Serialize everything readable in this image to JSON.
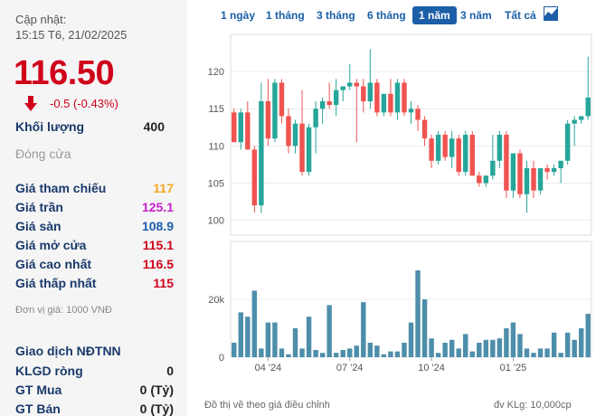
{
  "quote": {
    "updated_label": "Cập nhật:",
    "updated_time": "15:15 T6, 21/02/2025",
    "price": "116.50",
    "change": "-0.5 (-0.43%)",
    "volume_label": "Khối lượng",
    "volume": "400",
    "close_label": "Đóng cửa",
    "rows": [
      {
        "label": "Giá tham chiếu",
        "value": "117",
        "color": "#f5a623"
      },
      {
        "label": "Giá trần",
        "value": "125.1",
        "color": "#c71fc7"
      },
      {
        "label": "Giá sàn",
        "value": "108.9",
        "color": "#1d5ea8"
      },
      {
        "label": "Giá mở cửa",
        "value": "115.1",
        "color": "#d0021b"
      },
      {
        "label": "Giá cao nhất",
        "value": "116.5",
        "color": "#d0021b"
      },
      {
        "label": "Giá thấp nhất",
        "value": "115",
        "color": "#d0021b"
      }
    ],
    "unit_note": "Đơn vị giá: 1000 VNĐ",
    "foreign_title": "Giao dịch NĐTNN",
    "foreign_rows": [
      {
        "label": "KLGD ròng",
        "value": "0"
      },
      {
        "label": "GT Mua",
        "value": "0 (Tỷ)"
      },
      {
        "label": "GT Bán",
        "value": "0 (Tỷ)"
      }
    ]
  },
  "tabs": [
    "1 ngày",
    "1 tháng",
    "3 tháng",
    "6 tháng",
    "1 năm",
    "3 năm",
    "Tất cả"
  ],
  "active_tab": "1 năm",
  "chart_icon": "area-chart-icon",
  "colors": {
    "up": "#26a69a",
    "down": "#ef5350",
    "volume": "#4d8eaa",
    "price_down": "#d0021b"
  },
  "footnote_left": "Đồ thị vẽ theo giá điều chỉnh",
  "footnote_right": "đv KLg: 10,000cp",
  "chart_data": [
    {
      "type": "candlestick",
      "title": "",
      "x_ticks": [
        "04 '24",
        "07 '24",
        "10 '24",
        "01 '25"
      ],
      "x_tick_index": [
        5,
        17,
        29,
        41
      ],
      "y_ticks": [
        100,
        105,
        110,
        115,
        120
      ],
      "ylim": [
        98,
        125
      ],
      "grid": true,
      "candles": [
        {
          "o": 114.5,
          "h": 115,
          "l": 110.5,
          "c": 110.5
        },
        {
          "o": 110.5,
          "h": 115,
          "l": 109.5,
          "c": 114.5
        },
        {
          "o": 114.5,
          "h": 116,
          "l": 109.5,
          "c": 109.5
        },
        {
          "o": 109.5,
          "h": 110,
          "l": 101,
          "c": 102
        },
        {
          "o": 102,
          "h": 118.5,
          "l": 101,
          "c": 116
        },
        {
          "o": 116,
          "h": 119,
          "l": 110,
          "c": 111
        },
        {
          "o": 111,
          "h": 119,
          "l": 110.5,
          "c": 118.5
        },
        {
          "o": 118.5,
          "h": 119,
          "l": 113,
          "c": 114
        },
        {
          "o": 114,
          "h": 115,
          "l": 109,
          "c": 110
        },
        {
          "o": 110,
          "h": 113.5,
          "l": 109,
          "c": 113
        },
        {
          "o": 113,
          "h": 117.5,
          "l": 106,
          "c": 106.5
        },
        {
          "o": 106.5,
          "h": 113,
          "l": 106,
          "c": 112.5
        },
        {
          "o": 112.5,
          "h": 116,
          "l": 109,
          "c": 115
        },
        {
          "o": 115,
          "h": 116.5,
          "l": 113,
          "c": 116
        },
        {
          "o": 116,
          "h": 118.5,
          "l": 115,
          "c": 115.5
        },
        {
          "o": 115.5,
          "h": 119,
          "l": 114,
          "c": 117.5
        },
        {
          "o": 117.5,
          "h": 118,
          "l": 116,
          "c": 118
        },
        {
          "o": 118,
          "h": 121,
          "l": 117.5,
          "c": 118.5
        },
        {
          "o": 118.5,
          "h": 119,
          "l": 110.5,
          "c": 118
        },
        {
          "o": 118,
          "h": 119,
          "l": 114.5,
          "c": 116
        },
        {
          "o": 116,
          "h": 123,
          "l": 115,
          "c": 118.5
        },
        {
          "o": 118.5,
          "h": 119,
          "l": 114,
          "c": 114.5
        },
        {
          "o": 114.5,
          "h": 117,
          "l": 114,
          "c": 117
        },
        {
          "o": 117,
          "h": 119,
          "l": 114,
          "c": 114.5
        },
        {
          "o": 114.5,
          "h": 119,
          "l": 113.5,
          "c": 118.5
        },
        {
          "o": 118.5,
          "h": 119,
          "l": 114,
          "c": 114.5
        },
        {
          "o": 114.5,
          "h": 116,
          "l": 113,
          "c": 115
        },
        {
          "o": 115,
          "h": 115.5,
          "l": 112,
          "c": 113.5
        },
        {
          "o": 113.5,
          "h": 114,
          "l": 110,
          "c": 111
        },
        {
          "o": 111,
          "h": 111.5,
          "l": 107,
          "c": 108
        },
        {
          "o": 108,
          "h": 112,
          "l": 107.5,
          "c": 111.5
        },
        {
          "o": 111.5,
          "h": 112,
          "l": 108,
          "c": 108.5
        },
        {
          "o": 108.5,
          "h": 112,
          "l": 107,
          "c": 111
        },
        {
          "o": 111,
          "h": 111.5,
          "l": 106,
          "c": 106.5
        },
        {
          "o": 106.5,
          "h": 112,
          "l": 106,
          "c": 111.5
        },
        {
          "o": 111.5,
          "h": 112,
          "l": 106,
          "c": 106
        },
        {
          "o": 106,
          "h": 106.5,
          "l": 104.5,
          "c": 105
        },
        {
          "o": 105,
          "h": 106,
          "l": 104.5,
          "c": 106
        },
        {
          "o": 106,
          "h": 111.5,
          "l": 105.5,
          "c": 108
        },
        {
          "o": 108,
          "h": 112,
          "l": 107,
          "c": 111.5
        },
        {
          "o": 111.5,
          "h": 112,
          "l": 103,
          "c": 104
        },
        {
          "o": 104,
          "h": 109,
          "l": 103,
          "c": 109
        },
        {
          "o": 109,
          "h": 109.5,
          "l": 103,
          "c": 103.5
        },
        {
          "o": 103.5,
          "h": 108,
          "l": 101,
          "c": 107
        },
        {
          "o": 107,
          "h": 108,
          "l": 103,
          "c": 104
        },
        {
          "o": 104,
          "h": 107,
          "l": 103.5,
          "c": 107
        },
        {
          "o": 107,
          "h": 107.5,
          "l": 105.5,
          "c": 106.5
        },
        {
          "o": 106.5,
          "h": 107.5,
          "l": 106,
          "c": 107
        },
        {
          "o": 107,
          "h": 108,
          "l": 105,
          "c": 108
        },
        {
          "o": 108,
          "h": 113.5,
          "l": 107.5,
          "c": 113
        },
        {
          "o": 113,
          "h": 114,
          "l": 110,
          "c": 113.5
        },
        {
          "o": 113.5,
          "h": 114,
          "l": 113,
          "c": 114
        },
        {
          "o": 114,
          "h": 122,
          "l": 113.5,
          "c": 116.5
        }
      ]
    },
    {
      "type": "bar",
      "title": "",
      "y_ticks": [
        0,
        20000
      ],
      "y_tick_labels": [
        "0",
        "20k"
      ],
      "ylim": [
        0,
        40000
      ],
      "values": [
        5000,
        15500,
        14000,
        23000,
        3000,
        12000,
        12000,
        3000,
        1000,
        10000,
        3000,
        14000,
        2500,
        1500,
        18000,
        1500,
        2500,
        3000,
        4000,
        19000,
        5000,
        4000,
        1000,
        2000,
        2000,
        5000,
        12000,
        30000,
        20000,
        6500,
        1500,
        5000,
        6000,
        3000,
        8000,
        2000,
        5000,
        6000,
        6000,
        6500,
        10000,
        12000,
        8000,
        3000,
        1500,
        3000,
        3000,
        8500,
        1500,
        8500,
        6000,
        10000,
        15000
      ]
    }
  ]
}
